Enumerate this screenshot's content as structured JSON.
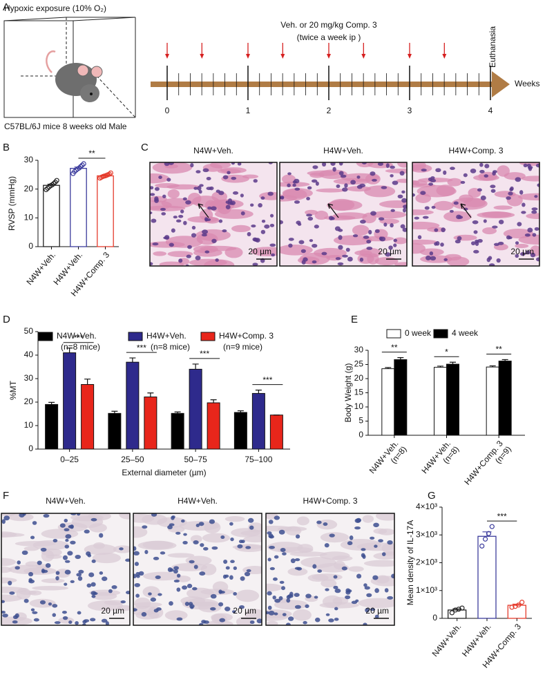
{
  "schematic": {
    "panel_label": "A",
    "exposure": "Hypoxic exposure (10% O₂)",
    "mice": "C57BL/6J mice 8 weeks old Male",
    "treatment": "Veh. or 20 mg/kg Comp. 3",
    "schedule": "(twice a week ip )",
    "endpoint": "Euthanasia",
    "axis_label": "Weeks",
    "ticks": [
      0,
      1,
      2,
      3,
      4
    ],
    "injection_weeks": [
      0,
      0.43,
      1,
      1.43,
      2,
      2.43,
      3,
      3.43
    ]
  },
  "histology_he": {
    "panel_label": "C",
    "titles": [
      "N4W+Veh.",
      "H4W+Veh.",
      "H4W+Comp. 3"
    ],
    "scale_bar": "20 µm"
  },
  "histology_ihc": {
    "panel_label": "F",
    "titles": [
      "N4W+Veh.",
      "H4W+Veh.",
      "H4W+Comp. 3"
    ],
    "scale_bar": "20 µm"
  },
  "chart_data": [
    {
      "panel_label": "B",
      "type": "bar",
      "ylabel": "RVSP (mmHg)",
      "categories": [
        "N4W+Veh.",
        "H4W+Veh.",
        "H4W+Comp. 3"
      ],
      "colors": [
        "#222222",
        "#3b3b9c",
        "#e53b2c"
      ],
      "values": [
        21.3,
        27.2,
        24.6
      ],
      "errors": [
        0.4,
        0.45,
        0.2
      ],
      "points": [
        [
          19.8,
          20.3,
          20.8,
          21.2,
          21.5,
          21.9,
          22.4,
          23.0
        ],
        [
          25.4,
          26.1,
          26.6,
          27.0,
          27.3,
          27.8,
          28.3,
          28.8
        ],
        [
          23.8,
          24.1,
          24.3,
          24.5,
          24.6,
          24.8,
          25.0,
          25.2,
          25.6
        ]
      ],
      "ylim": [
        0,
        30
      ],
      "yticks": [
        0,
        10,
        20,
        30
      ],
      "significance": [
        {
          "from": 1,
          "to": 2,
          "label": "**"
        }
      ]
    },
    {
      "panel_label": "D",
      "type": "grouped_bar",
      "ylabel": "%MT",
      "xlabel": "External diameter (µm)",
      "categories": [
        "0–25",
        "25–50",
        "50–75",
        "75–100"
      ],
      "series": [
        {
          "name": "N4W+Veh.",
          "sample_size": "(n=8 mice)",
          "color": "#000000",
          "values": [
            19.0,
            15.2,
            15.2,
            15.6
          ],
          "errors": [
            0.9,
            0.9,
            0.6,
            0.7
          ]
        },
        {
          "name": "H4W+Veh.",
          "sample_size": "(n=8 mice)",
          "color": "#2e2a8c",
          "values": [
            41.0,
            37.0,
            34.0,
            23.7
          ],
          "errors": [
            2.0,
            1.8,
            2.2,
            1.4
          ]
        },
        {
          "name": "H4W+Comp. 3",
          "sample_size": "(n=9 mice)",
          "color": "#e8261b",
          "values": [
            27.5,
            22.2,
            19.7,
            14.5
          ],
          "errors": [
            2.3,
            1.7,
            1.3,
            0
          ]
        }
      ],
      "ylim": [
        0,
        50
      ],
      "yticks": [
        0,
        10,
        20,
        30,
        40,
        50
      ],
      "significance": [
        {
          "group": 0,
          "from": 1,
          "to": 2,
          "label": "***"
        },
        {
          "group": 1,
          "from": 1,
          "to": 2,
          "label": "***"
        },
        {
          "group": 2,
          "from": 1,
          "to": 2,
          "label": "***"
        },
        {
          "group": 3,
          "from": 1,
          "to": 2,
          "label": "***"
        }
      ]
    },
    {
      "panel_label": "E",
      "type": "grouped_bar",
      "ylabel": "Body Weight (g)",
      "categories": [
        "N4W+Veh.",
        "H4W+Veh.",
        "H4W+Comp. 3"
      ],
      "category_notes": [
        "(n=8)",
        "(n=8)",
        "(n=9)"
      ],
      "series": [
        {
          "name": "0 week",
          "color": "#ffffff",
          "values": [
            23.5,
            24.0,
            24.1
          ],
          "errors": [
            0.4,
            0.4,
            0.4
          ]
        },
        {
          "name": "4 week",
          "color": "#000000",
          "values": [
            26.7,
            25.1,
            26.2
          ],
          "errors": [
            0.7,
            0.7,
            0.5
          ]
        }
      ],
      "ylim": [
        0,
        30
      ],
      "yticks": [
        0,
        5,
        10,
        15,
        20,
        25,
        30
      ],
      "significance": [
        {
          "group": 0,
          "from": 0,
          "to": 1,
          "label": "**"
        },
        {
          "group": 1,
          "from": 0,
          "to": 1,
          "label": "*"
        },
        {
          "group": 2,
          "from": 0,
          "to": 1,
          "label": "**"
        }
      ]
    },
    {
      "panel_label": "G",
      "type": "bar",
      "ylabel": "Mean density of IL-17A",
      "categories": [
        "N4W+Veh.",
        "H4W+Veh.",
        "H4W+Comp. 3"
      ],
      "colors": [
        "#222222",
        "#3b3b9c",
        "#e53b2c"
      ],
      "values": [
        300,
        2950,
        470
      ],
      "errors": [
        40,
        160,
        40
      ],
      "points": [
        [
          200,
          300,
          330,
          370
        ],
        [
          2600,
          2850,
          3050,
          3300
        ],
        [
          400,
          430,
          480,
          580
        ]
      ],
      "ylim": [
        0,
        4000
      ],
      "yticks": [
        0,
        {
          "value": 1000,
          "label": "1×10³"
        },
        {
          "value": 2000,
          "label": "2×10³"
        },
        {
          "value": 3000,
          "label": "3×10³"
        },
        {
          "value": 4000,
          "label": "4×10³"
        }
      ],
      "significance": [
        {
          "from": 1,
          "to": 2,
          "label": "***"
        }
      ]
    }
  ]
}
